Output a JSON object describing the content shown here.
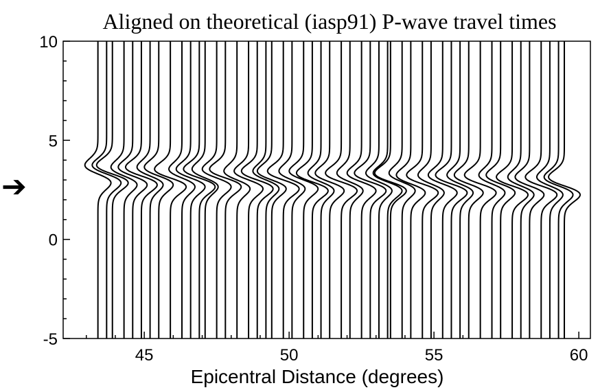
{
  "chart_data": {
    "type": "line",
    "title": "Aligned on theoretical (iasp91) P-wave travel times",
    "xlabel": "Epicentral Distance (degrees)",
    "ylabel": "",
    "xlim": [
      42.2,
      60.4
    ],
    "ylim": [
      -5,
      10
    ],
    "x_ticks": [
      "45",
      "50",
      "55",
      "60"
    ],
    "y_ticks": [
      "10",
      "5",
      "0",
      "-5"
    ],
    "x_tick_values": [
      45,
      50,
      55,
      60
    ],
    "y_tick_values": [
      10,
      5,
      0,
      -5
    ],
    "marker": {
      "glyph": "➔",
      "y": 2.7
    },
    "trace_offsets": [
      43.4,
      43.7,
      43.9,
      44.3,
      44.6,
      44.9,
      45.2,
      45.5,
      45.9,
      46.3,
      46.6,
      46.9,
      47.1,
      47.5,
      47.8,
      48.2,
      48.6,
      48.9,
      49.2,
      49.4,
      49.8,
      50.1,
      50.5,
      50.8,
      51.1,
      51.4,
      51.8,
      52.1,
      52.5,
      52.8,
      53.1,
      53.4,
      53.5,
      53.9,
      54.2,
      54.6,
      54.9,
      55.3,
      55.6,
      55.9,
      56.2,
      56.6,
      57.0,
      57.3,
      57.7,
      58.0,
      58.3,
      58.7,
      59.0,
      59.3,
      59.5
    ],
    "wavelet_center_time": [
      3.3,
      3.3,
      3.3,
      3.2,
      3.2,
      3.2,
      3.2,
      3.2,
      3.1,
      3.1,
      3.1,
      3.1,
      3.1,
      3.1,
      3.1,
      3.0,
      3.0,
      3.0,
      3.0,
      3.0,
      3.0,
      3.0,
      3.0,
      2.9,
      2.9,
      2.9,
      2.9,
      2.9,
      2.9,
      2.9,
      2.9,
      2.9,
      2.9,
      2.9,
      2.8,
      2.8,
      2.8,
      2.8,
      2.8,
      2.8,
      2.8,
      2.8,
      2.8,
      2.8,
      2.7,
      2.7,
      2.7,
      2.7,
      2.7,
      2.7,
      2.7
    ]
  }
}
